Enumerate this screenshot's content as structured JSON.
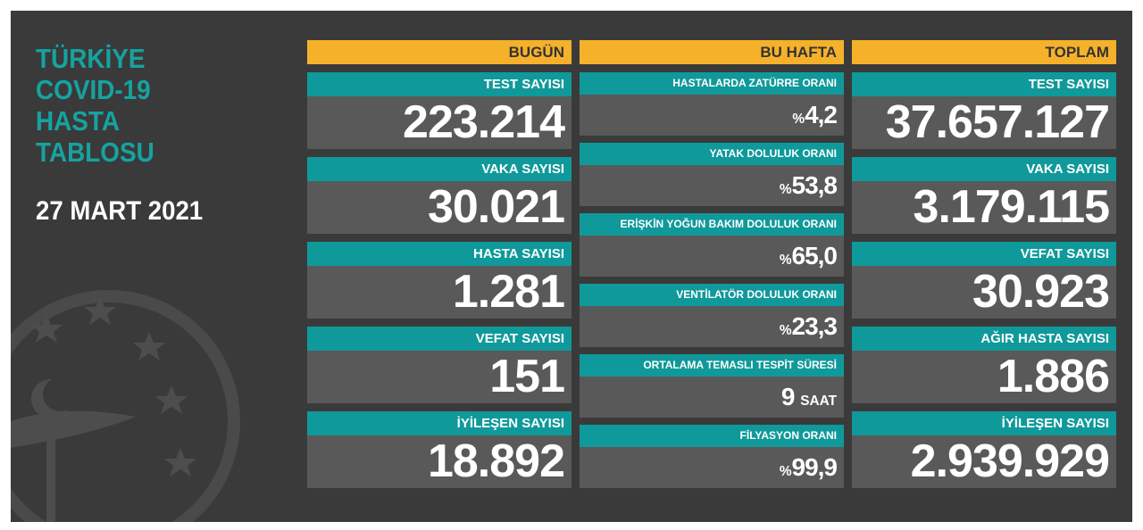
{
  "header": {
    "title_lines": [
      "TÜRKİYE",
      "COVID-19",
      "HASTA",
      "TABLOSU"
    ],
    "date": "27 MART 2021"
  },
  "columns": [
    {
      "heading": "BUGÜN",
      "items": [
        {
          "label": "TEST SAYISI",
          "value": "223.214"
        },
        {
          "label": "VAKA SAYISI",
          "value": "30.021"
        },
        {
          "label": "HASTA SAYISI",
          "value": "1.281"
        },
        {
          "label": "VEFAT SAYISI",
          "value": "151"
        },
        {
          "label": "İYİLEŞEN SAYISI",
          "value": "18.892"
        }
      ]
    },
    {
      "heading": "BU HAFTA",
      "items": [
        {
          "label": "HASTALARDA ZATÜRRE ORANI",
          "prefix": "%",
          "value": "4,2"
        },
        {
          "label": "YATAK DOLULUK ORANI",
          "prefix": "%",
          "value": "53,8"
        },
        {
          "label": "ERİŞKİN YOĞUN BAKIM DOLULUK ORANI",
          "prefix": "%",
          "value": "65,0"
        },
        {
          "label": "VENTİLATÖR DOLULUK ORANI",
          "prefix": "%",
          "value": "23,3"
        },
        {
          "label": "ORTALAMA TEMASLI TESPİT SÜRESİ",
          "value": "9",
          "suffix": "SAAT"
        },
        {
          "label": "FİLYASYON ORANI",
          "prefix": "%",
          "value": "99,9"
        }
      ]
    },
    {
      "heading": "TOPLAM",
      "items": [
        {
          "label": "TEST SAYISI",
          "value": "37.657.127"
        },
        {
          "label": "VAKA SAYISI",
          "value": "3.179.115"
        },
        {
          "label": "VEFAT SAYISI",
          "value": "30.923"
        },
        {
          "label": "AĞIR HASTA SAYISI",
          "value": "1.886"
        },
        {
          "label": "İYİLEŞEN SAYISI",
          "value": "2.939.929"
        }
      ]
    }
  ]
}
